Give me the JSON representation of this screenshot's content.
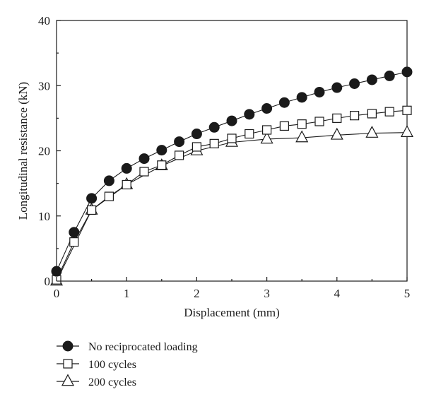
{
  "chart_data": {
    "type": "line",
    "xlabel": "Displacement (mm)",
    "ylabel": "Longitudinal resistance (kN)",
    "xlim": [
      0,
      5
    ],
    "ylim": [
      0,
      40
    ],
    "xticks": [
      "0",
      "1",
      "2",
      "3",
      "4",
      "5"
    ],
    "yticks": [
      "0",
      "10",
      "20",
      "30",
      "40"
    ],
    "grid": false,
    "legend_position": "bottom-left",
    "series": [
      {
        "name": "No reciprocated loading",
        "marker": "filled-circle",
        "x": [
          0,
          0.25,
          0.5,
          0.75,
          1.0,
          1.25,
          1.5,
          1.75,
          2.0,
          2.25,
          2.5,
          2.75,
          3.0,
          3.25,
          3.5,
          3.75,
          4.0,
          4.25,
          4.5,
          4.75,
          5.0
        ],
        "y": [
          1.5,
          7.5,
          12.7,
          15.4,
          17.3,
          18.8,
          20.1,
          21.4,
          22.6,
          23.6,
          24.6,
          25.6,
          26.5,
          27.4,
          28.2,
          29.0,
          29.7,
          30.3,
          30.9,
          31.5,
          32.1
        ]
      },
      {
        "name": "100 cycles",
        "marker": "open-square",
        "x": [
          0,
          0.25,
          0.5,
          0.75,
          1.0,
          1.25,
          1.5,
          1.75,
          2.0,
          2.25,
          2.5,
          2.75,
          3.0,
          3.25,
          3.5,
          3.75,
          4.0,
          4.25,
          4.5,
          4.75,
          5.0
        ],
        "y": [
          0.2,
          6.0,
          10.9,
          13.0,
          14.8,
          16.8,
          17.8,
          19.3,
          20.6,
          21.1,
          21.9,
          22.6,
          23.2,
          23.8,
          24.1,
          24.5,
          25.0,
          25.4,
          25.7,
          26.0,
          26.2
        ]
      },
      {
        "name": "200 cycles",
        "marker": "open-triangle",
        "x": [
          0,
          0.5,
          1.0,
          1.5,
          2.0,
          2.5,
          3.0,
          3.5,
          4.0,
          4.5,
          5.0
        ],
        "y": [
          0.0,
          10.9,
          14.8,
          17.7,
          20.0,
          21.3,
          21.8,
          22.0,
          22.4,
          22.7,
          22.8
        ]
      }
    ]
  }
}
